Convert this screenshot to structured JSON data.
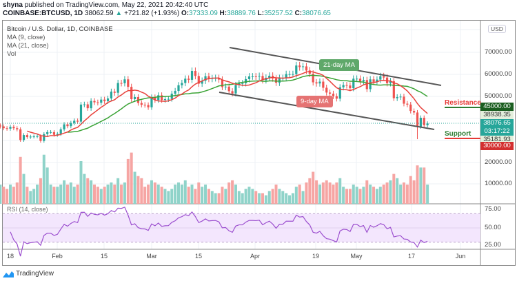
{
  "header": {
    "author": "shyna",
    "published": "published on TradingView.com, May 22, 2021 20:42:40 UTC",
    "symbol": "COINBASE:BTCUSD, 1D",
    "last": "38062.59",
    "change": "+721.82 (+1.93%)",
    "o_label": "O:",
    "o": "37333.09",
    "h_label": "H:",
    "h": "38889.76",
    "l_label": "L:",
    "l": "35257.52",
    "c_label": "C:",
    "c": "38076.65"
  },
  "legend": {
    "title": "Bitcoin / U.S. Dollar, 1D, COINBASE",
    "ma9": "MA (9, close)",
    "ma21": "MA (21, close)",
    "vol": "Vol"
  },
  "currency": "USD",
  "price_axis": [
    "80000.00",
    "70000.00",
    "60000.00",
    "50000.00",
    "20000.00",
    "10000.00"
  ],
  "price_tags": {
    "resistance": "45000.00",
    "ma9": "38938.35",
    "last": "38076.65",
    "countdown": "03:17:22",
    "ma21": "35181.93",
    "support": "30000.00"
  },
  "annotations": {
    "resistance": "Resistance",
    "support": "Support",
    "ma21_label": "21-day MA",
    "ma9_label": "9-day MA"
  },
  "rsi": {
    "label": "RSI (14, close)",
    "ticks": [
      "75.00",
      "50.00",
      "25.00"
    ]
  },
  "date_axis": [
    "18",
    "Feb",
    "15",
    "Mar",
    "15",
    "Apr",
    "19",
    "May",
    "17",
    "Jun"
  ],
  "colors": {
    "up": "#26a69a",
    "down": "#ef5350",
    "ma9": "#e8413b",
    "ma21": "#3aa335",
    "rsi": "#9c4fcf",
    "resistance_tag": "#1b5e20",
    "support_tag": "#d32f2f",
    "last_tag": "#26a69a"
  },
  "footer": {
    "brand": "TradingView"
  },
  "chart_data": {
    "type": "candlestick",
    "start_date": "2021-01-15",
    "interval": "1D",
    "close": [
      36800,
      36000,
      35800,
      36600,
      36000,
      35500,
      30800,
      33000,
      32100,
      32300,
      32400,
      32500,
      30400,
      33400,
      34300,
      34300,
      33100,
      33500,
      35500,
      37700,
      36900,
      38300,
      39300,
      38900,
      46400,
      46500,
      44800,
      48000,
      47400,
      47200,
      48600,
      47900,
      49100,
      52100,
      51600,
      55900,
      55800,
      57500,
      54200,
      48800,
      49700,
      47100,
      46300,
      46200,
      45200,
      49600,
      48400,
      50500,
      48400,
      48800,
      48900,
      51200,
      52400,
      54900,
      55900,
      57800,
      57300,
      61200,
      59000,
      55600,
      56900,
      58900,
      57700,
      58000,
      58100,
      57400,
      54100,
      54300,
      52300,
      51300,
      55000,
      55800,
      55800,
      57600,
      58800,
      58800,
      58700,
      59000,
      57100,
      58200,
      59100,
      57900,
      56000,
      58100,
      58100,
      59800,
      59800,
      59800,
      63600,
      62900,
      63200,
      61400,
      60000,
      56200,
      55700,
      56500,
      53800,
      51700,
      51200,
      50100,
      49000,
      54000,
      55000,
      54800,
      53600,
      57800,
      57800,
      56600,
      57200,
      53200,
      57500,
      56400,
      57400,
      58900,
      58300,
      55800,
      56700,
      49200,
      49700,
      49900,
      46800,
      46400,
      43600,
      42900,
      36700,
      40600,
      37300,
      38076.65
    ],
    "volume": [
      9000,
      8000,
      7000,
      9000,
      8000,
      10000,
      22000,
      14000,
      8000,
      6000,
      7000,
      9000,
      12000,
      23000,
      17000,
      9000,
      8000,
      8000,
      9000,
      11000,
      9000,
      10000,
      8000,
      9000,
      20000,
      14000,
      12000,
      11000,
      9000,
      8000,
      7000,
      8000,
      9000,
      10000,
      9000,
      12000,
      9000,
      10000,
      21000,
      24000,
      15000,
      13000,
      12000,
      8000,
      9000,
      11000,
      10000,
      9000,
      8000,
      7000,
      6000,
      7000,
      9000,
      10000,
      9000,
      11000,
      8000,
      9000,
      7000,
      10000,
      8000,
      9000,
      7000,
      6000,
      5000,
      5000,
      8000,
      7000,
      10000,
      11000,
      9000,
      6000,
      5000,
      7000,
      8000,
      7000,
      6000,
      5000,
      5000,
      4000,
      6000,
      7000,
      9000,
      7000,
      6000,
      5000,
      4000,
      5000,
      8000,
      9000,
      6000,
      10000,
      12000,
      15000,
      11000,
      9000,
      10000,
      11000,
      10000,
      9000,
      10000,
      12000,
      8000,
      7000,
      7000,
      9000,
      8000,
      7000,
      8000,
      11000,
      9000,
      8000,
      7000,
      8000,
      9000,
      10000,
      11000,
      14000,
      12000,
      9000,
      10000,
      9000,
      13000,
      11000,
      18000,
      17000,
      17000,
      9000
    ],
    "levels": {
      "resistance": 45000,
      "support": 30000
    },
    "rsi_levels": [
      30,
      50,
      70
    ],
    "grid": true,
    "legend": "top-left"
  }
}
